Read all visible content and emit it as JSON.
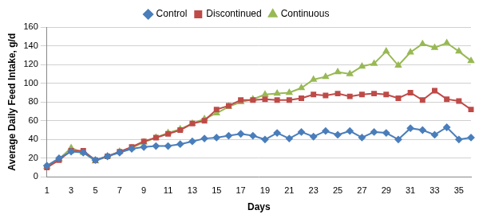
{
  "chart_data": {
    "type": "line",
    "x_label": "Days",
    "y_label": "Average Daily Feed Intake, g/d",
    "categories": [
      1,
      null,
      3,
      null,
      5,
      null,
      7,
      null,
      9,
      null,
      11,
      null,
      13,
      null,
      15,
      null,
      17,
      null,
      19,
      null,
      21,
      null,
      23,
      null,
      25,
      null,
      27,
      null,
      29,
      null,
      31,
      null,
      33,
      null,
      35,
      null
    ],
    "series": [
      {
        "name": "Control",
        "color": "#4a7ebb",
        "marker": "diamond",
        "values": [
          12,
          20,
          27,
          26,
          18,
          22,
          26,
          30,
          32,
          33,
          33,
          35,
          38,
          41,
          42,
          44,
          46,
          44,
          40,
          47,
          41,
          48,
          43,
          49,
          45,
          49,
          42,
          48,
          47,
          40,
          52,
          50,
          45,
          53,
          40,
          42
        ]
      },
      {
        "name": "Discontinued",
        "color": "#be4b48",
        "marker": "square",
        "values": [
          10,
          18,
          28,
          28,
          18,
          22,
          27,
          32,
          38,
          42,
          46,
          50,
          57,
          60,
          72,
          76,
          82,
          82,
          83,
          82,
          82,
          84,
          88,
          87,
          89,
          86,
          88,
          89,
          88,
          84,
          90,
          82,
          92,
          83,
          81,
          72
        ]
      },
      {
        "name": "Continuous",
        "color": "#98b954",
        "marker": "triangle",
        "values": [
          11,
          19,
          31,
          26,
          17,
          22,
          27,
          31,
          37,
          42,
          47,
          51,
          57,
          62,
          68,
          75,
          80,
          83,
          88,
          89,
          90,
          95,
          104,
          107,
          112,
          110,
          118,
          121,
          134,
          119,
          133,
          142,
          138,
          143,
          134,
          124
        ]
      }
    ],
    "ylim": [
      0,
      160
    ],
    "yticks": [
      0,
      20,
      40,
      60,
      80,
      100,
      120,
      140,
      160
    ],
    "grid": true,
    "legend": "top"
  }
}
